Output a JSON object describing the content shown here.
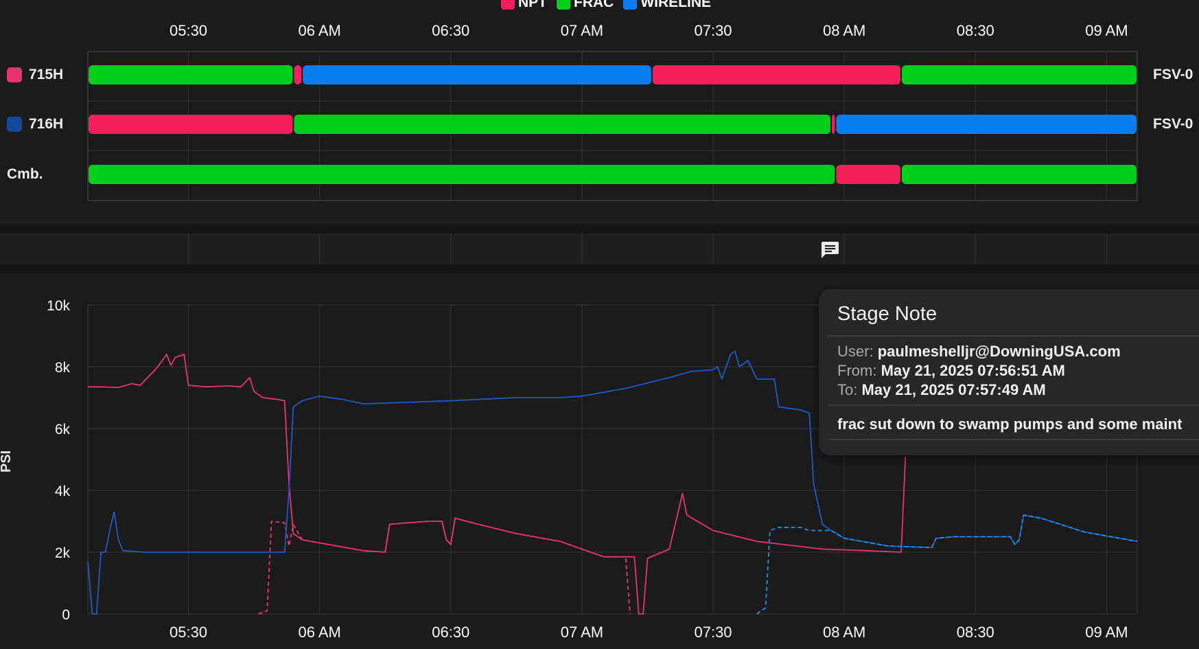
{
  "legend": [
    {
      "label": "NPT",
      "color": "#f51f5b"
    },
    {
      "label": "FRAC",
      "color": "#00d01b"
    },
    {
      "label": "WIRELINE",
      "color": "#0a7df0"
    }
  ],
  "timeline": {
    "x_ticks": [
      "05:30",
      "06 AM",
      "06:30",
      "07 AM",
      "07:30",
      "08 AM",
      "08:30",
      "09 AM"
    ],
    "rows": [
      {
        "label": "715H",
        "swatch": "#e8336e",
        "right_label": "FSV-0",
        "segments": [
          {
            "state": "FRAC",
            "start": "05:07",
            "end": "05:54"
          },
          {
            "state": "NPT",
            "start": "05:54",
            "end": "05:56"
          },
          {
            "state": "WIRELINE",
            "start": "05:56",
            "end": "07:16"
          },
          {
            "state": "NPT",
            "start": "07:16",
            "end": "08:13"
          },
          {
            "state": "FRAC",
            "start": "08:13",
            "end": "09:07"
          }
        ]
      },
      {
        "label": "716H",
        "swatch": "#114a9e",
        "right_label": "FSV-0",
        "segments": [
          {
            "state": "NPT",
            "start": "05:07",
            "end": "05:54"
          },
          {
            "state": "FRAC",
            "start": "05:54",
            "end": "07:57"
          },
          {
            "state": "NPT",
            "start": "07:57",
            "end": "07:58"
          },
          {
            "state": "WIRELINE",
            "start": "07:58",
            "end": "09:07"
          }
        ]
      },
      {
        "label": "Cmb.",
        "swatch": "",
        "right_label": "",
        "segments": [
          {
            "state": "FRAC",
            "start": "05:07",
            "end": "07:58"
          },
          {
            "state": "NPT",
            "start": "07:58",
            "end": "08:13"
          },
          {
            "state": "FRAC",
            "start": "08:13",
            "end": "09:07"
          }
        ]
      }
    ]
  },
  "notes_strip": {
    "icon": "comment-icon",
    "note_time": "07:57"
  },
  "tooltip": {
    "title": "Stage Note",
    "user_label": "User:",
    "user": "paulmeshelljr@DowningUSA.com",
    "from_label": "From:",
    "from": "May 21, 2025 07:56:51 AM",
    "to_label": "To:",
    "to": "May 21, 2025 07:57:49 AM",
    "message": "frac sut down to swamp pumps and some maint"
  },
  "chart_data": {
    "type": "line",
    "ylabel": "PSI",
    "xlabel": "",
    "y_ticks": [
      "10k",
      "8k",
      "6k",
      "4k",
      "2k",
      "0"
    ],
    "x_ticks": [
      "05:30",
      "06 AM",
      "06:30",
      "07 AM",
      "07:30",
      "08 AM",
      "08:30",
      "09 AM"
    ],
    "xlim": [
      "05:07",
      "09:07"
    ],
    "ylim": [
      0,
      10000
    ],
    "grid": true,
    "series": [
      {
        "color": "#e8336e",
        "style": "solid",
        "points": [
          [
            "05:07",
            7350
          ],
          [
            "05:10",
            7350
          ],
          [
            "05:14",
            7330
          ],
          [
            "05:17",
            7450
          ],
          [
            "05:19",
            7400
          ],
          [
            "05:21",
            7700
          ],
          [
            "05:23",
            8000
          ],
          [
            "05:25",
            8400
          ],
          [
            "05:26",
            8050
          ],
          [
            "05:27",
            8300
          ],
          [
            "05:29",
            8400
          ],
          [
            "05:30",
            7400
          ],
          [
            "05:34",
            7350
          ],
          [
            "05:39",
            7380
          ],
          [
            "05:42",
            7350
          ],
          [
            "05:44",
            7650
          ],
          [
            "05:45",
            7200
          ],
          [
            "05:47",
            7000
          ],
          [
            "05:50",
            6950
          ],
          [
            "05:52",
            6900
          ],
          [
            "05:53",
            4200
          ],
          [
            "05:54",
            2600
          ],
          [
            "05:56",
            2400
          ],
          [
            "06:00",
            2300
          ],
          [
            "06:10",
            2050
          ],
          [
            "06:15",
            2000
          ],
          [
            "06:16",
            2900
          ],
          [
            "06:20",
            2950
          ],
          [
            "06:25",
            3000
          ],
          [
            "06:28",
            3000
          ],
          [
            "06:29",
            2400
          ],
          [
            "06:30",
            2250
          ],
          [
            "06:31",
            3100
          ],
          [
            "06:35",
            2950
          ],
          [
            "06:45",
            2600
          ],
          [
            "06:55",
            2350
          ],
          [
            "07:05",
            1850
          ],
          [
            "07:12",
            1850
          ],
          [
            "07:13",
            0
          ],
          [
            "07:14",
            0
          ],
          [
            "07:15",
            1800
          ],
          [
            "07:20",
            2100
          ],
          [
            "07:22",
            3300
          ],
          [
            "07:23",
            3900
          ],
          [
            "07:24",
            3200
          ],
          [
            "07:30",
            2700
          ],
          [
            "07:40",
            2350
          ],
          [
            "07:55",
            2100
          ],
          [
            "08:05",
            2050
          ],
          [
            "08:13",
            2000
          ],
          [
            "08:14",
            5100
          ]
        ]
      },
      {
        "color": "#e8336e",
        "style": "dashed",
        "points": [
          [
            "05:46",
            0
          ],
          [
            "05:48",
            100
          ],
          [
            "05:49",
            3000
          ],
          [
            "05:52",
            2950
          ],
          [
            "05:53",
            2200
          ],
          [
            "05:54",
            2900
          ],
          [
            "05:56",
            2400
          ],
          [
            "06:00",
            2300
          ],
          [
            "06:10",
            2050
          ],
          [
            "06:15",
            2000
          ],
          [
            "06:16",
            2900
          ],
          [
            "06:20",
            2950
          ],
          [
            "06:25",
            3000
          ],
          [
            "06:28",
            3000
          ],
          [
            "06:29",
            2400
          ],
          [
            "06:30",
            2250
          ],
          [
            "06:31",
            3100
          ],
          [
            "06:35",
            2950
          ],
          [
            "06:45",
            2600
          ],
          [
            "06:55",
            2350
          ],
          [
            "07:05",
            1850
          ],
          [
            "07:10",
            1850
          ],
          [
            "07:11",
            0
          ]
        ]
      },
      {
        "color": "#1c5bc4",
        "style": "solid",
        "points": [
          [
            "05:07",
            1700
          ],
          [
            "05:08",
            0
          ],
          [
            "05:09",
            0
          ],
          [
            "05:10",
            2000
          ],
          [
            "05:11",
            2000
          ],
          [
            "05:12",
            2700
          ],
          [
            "05:13",
            3300
          ],
          [
            "05:14",
            2400
          ],
          [
            "05:15",
            2050
          ],
          [
            "05:20",
            2000
          ],
          [
            "05:40",
            2000
          ],
          [
            "05:52",
            2000
          ],
          [
            "05:53",
            4000
          ],
          [
            "05:54",
            6700
          ],
          [
            "05:56",
            6900
          ],
          [
            "06:00",
            7050
          ],
          [
            "06:05",
            6950
          ],
          [
            "06:10",
            6800
          ],
          [
            "06:20",
            6850
          ],
          [
            "06:30",
            6900
          ],
          [
            "06:37",
            6950
          ],
          [
            "06:45",
            7000
          ],
          [
            "06:55",
            7000
          ],
          [
            "07:00",
            7050
          ],
          [
            "07:10",
            7300
          ],
          [
            "07:20",
            7650
          ],
          [
            "07:25",
            7850
          ],
          [
            "07:30",
            7900
          ],
          [
            "07:31",
            8000
          ],
          [
            "07:32",
            7600
          ],
          [
            "07:33",
            8000
          ],
          [
            "07:34",
            8400
          ],
          [
            "07:35",
            8500
          ],
          [
            "07:36",
            8000
          ],
          [
            "07:38",
            8200
          ],
          [
            "07:40",
            7600
          ],
          [
            "07:44",
            7600
          ],
          [
            "07:45",
            6700
          ],
          [
            "07:50",
            6600
          ],
          [
            "07:52",
            6500
          ],
          [
            "07:53",
            4200
          ],
          [
            "07:55",
            2900
          ],
          [
            "07:57",
            2700
          ],
          [
            "08:00",
            2450
          ],
          [
            "08:10",
            2200
          ],
          [
            "08:20",
            2150
          ],
          [
            "08:21",
            2450
          ],
          [
            "08:25",
            2500
          ],
          [
            "08:35",
            2500
          ],
          [
            "08:38",
            2500
          ],
          [
            "08:39",
            2250
          ],
          [
            "08:40",
            2400
          ],
          [
            "08:41",
            3200
          ],
          [
            "08:45",
            3100
          ],
          [
            "08:55",
            2650
          ],
          [
            "09:07",
            2350
          ]
        ]
      },
      {
        "color": "#1a93e8",
        "style": "dashed",
        "points": [
          [
            "07:40",
            0
          ],
          [
            "07:42",
            200
          ],
          [
            "07:43",
            2700
          ],
          [
            "07:45",
            2800
          ],
          [
            "07:50",
            2800
          ],
          [
            "07:52",
            2700
          ],
          [
            "07:57",
            2700
          ],
          [
            "08:00",
            2450
          ],
          [
            "08:10",
            2200
          ],
          [
            "08:20",
            2150
          ],
          [
            "08:21",
            2450
          ],
          [
            "08:25",
            2500
          ],
          [
            "08:35",
            2500
          ],
          [
            "08:38",
            2500
          ],
          [
            "08:39",
            2250
          ],
          [
            "08:40",
            2400
          ],
          [
            "08:41",
            3200
          ],
          [
            "08:45",
            3100
          ],
          [
            "08:55",
            2650
          ],
          [
            "09:07",
            2350
          ]
        ]
      }
    ]
  }
}
